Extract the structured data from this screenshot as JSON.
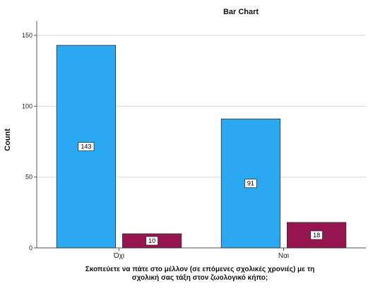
{
  "chart_data": {
    "type": "bar",
    "title": "Bar Chart",
    "ylabel": "Count",
    "xlabel_lines": [
      "Σκοπεύετε να πάτε στο μέλλον (σε επόμενες σχολικές χρονιές) με τη",
      "σχολική σας τάξη στον ζωολογικό κήπο;"
    ],
    "categories": [
      "Όχι",
      "Ναι"
    ],
    "series": [
      {
        "values": [
          143,
          91
        ],
        "color": "#2aa8f2",
        "data_labels": [
          "143",
          "91"
        ]
      },
      {
        "values": [
          10,
          18
        ],
        "color": "#96154e",
        "data_labels": [
          "10",
          "18"
        ]
      }
    ],
    "ylim": [
      0,
      160
    ],
    "yticks": [
      0,
      50,
      100,
      150
    ],
    "ytick_labels": [
      "0",
      "50",
      "100",
      "150"
    ],
    "grid": true
  }
}
